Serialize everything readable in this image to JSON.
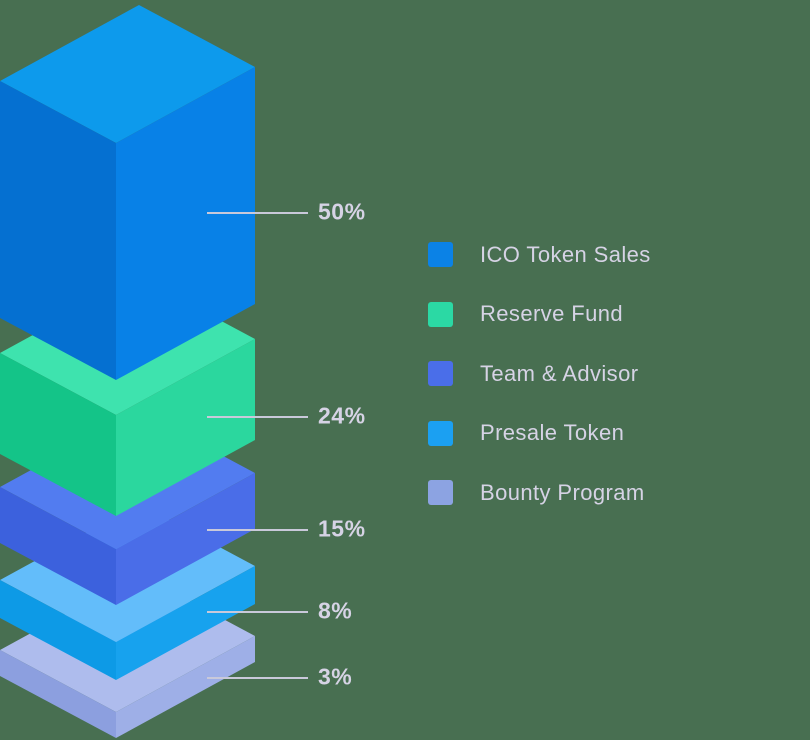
{
  "background_color": "#486f51",
  "text_color": "#d6d3e5",
  "line_color": "#c9c9da",
  "chart_data": {
    "type": "stacked-isometric-bar",
    "title": "",
    "unit": "%",
    "legend_position": "right",
    "layers": [
      {
        "name": "ICO Token Sales",
        "value": 50,
        "percent_label": "50%",
        "colors": {
          "top": "#0d9aec",
          "left": "#0570d1",
          "right": "#0881e7"
        }
      },
      {
        "name": "Reserve Fund",
        "value": 24,
        "percent_label": "24%",
        "colors": {
          "top": "#3ee3ae",
          "left": "#14c488",
          "right": "#2bd79e"
        }
      },
      {
        "name": "Team & Advisor",
        "value": 15,
        "percent_label": "15%",
        "colors": {
          "top": "#527cf0",
          "left": "#3c61dd",
          "right": "#4a6de8"
        }
      },
      {
        "name": "Presale Token",
        "value": 8,
        "percent_label": "8%",
        "colors": {
          "top": "#63bdfa",
          "left": "#0d9ae6",
          "right": "#17a2ee"
        }
      },
      {
        "name": "Bounty Program",
        "value": 3,
        "percent_label": "3%",
        "colors": {
          "top": "#aebced",
          "left": "#8c9fdf",
          "right": "#9eafe7"
        }
      }
    ],
    "legend": [
      {
        "label": "ICO Token Sales",
        "swatch": "#0b82e6"
      },
      {
        "label": "Reserve Fund",
        "swatch": "#2bd9a4"
      },
      {
        "label": "Team & Advisor",
        "swatch": "#4a6ee9"
      },
      {
        "label": "Presale Token",
        "swatch": "#1ba0f2"
      },
      {
        "label": "Bounty Program",
        "swatch": "#8ca3e2"
      }
    ]
  }
}
